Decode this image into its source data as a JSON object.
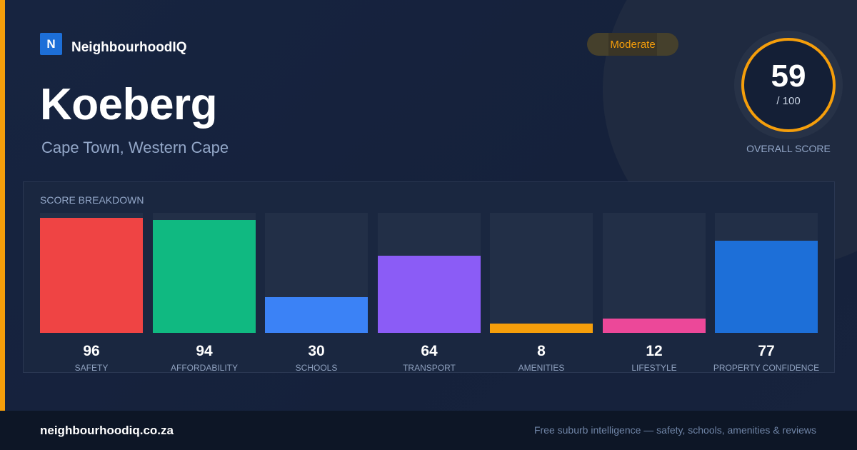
{
  "brand": {
    "logo_letter": "N",
    "name": "NeighbourhoodIQ",
    "accent": "#f59e0b",
    "logo_color": "#1d6fd8"
  },
  "suburb": {
    "name": "Koeberg",
    "location": "Cape Town, Western Cape"
  },
  "rating": {
    "badge": "Moderate",
    "badge_color": "#f59e0b"
  },
  "overall": {
    "score": "59",
    "max": "/ 100",
    "label": "OVERALL SCORE",
    "fraction": 0.59
  },
  "breakdown": {
    "title": "SCORE BREAKDOWN",
    "items": [
      {
        "label": "SAFETY",
        "value": 96,
        "color": "#ef4444"
      },
      {
        "label": "AFFORDABILITY",
        "value": 94,
        "color": "#10b981"
      },
      {
        "label": "SCHOOLS",
        "value": 30,
        "color": "#3b82f6"
      },
      {
        "label": "TRANSPORT",
        "value": 64,
        "color": "#8b5cf6"
      },
      {
        "label": "AMENITIES",
        "value": 8,
        "color": "#f59e0b"
      },
      {
        "label": "LIFESTYLE",
        "value": 12,
        "color": "#ec4899"
      },
      {
        "label": "PROPERTY CONFIDENCE",
        "value": 77,
        "color": "#1d6fd8"
      }
    ]
  },
  "footer": {
    "url": "neighbourhoodiq.co.za",
    "tagline": "Free suburb intelligence — safety, schools, amenities & reviews"
  }
}
